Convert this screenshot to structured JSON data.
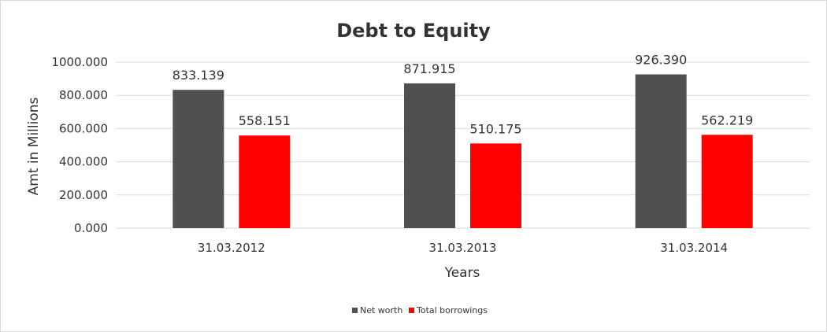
{
  "chart_data": {
    "type": "bar",
    "title": "Debt to Equity",
    "xlabel": "Years",
    "ylabel": "Amt in Millions",
    "categories": [
      "31.03.2012",
      "31.03.2013",
      "31.03.2014"
    ],
    "ylim": [
      0,
      1000
    ],
    "yticks": [
      "0.000",
      "200.000",
      "400.000",
      "600.000",
      "800.000",
      "1000.000"
    ],
    "grid": true,
    "legend_position": "bottom",
    "series": [
      {
        "name": "Net worth",
        "color": "#505050",
        "values": [
          833.139,
          871.915,
          926.39
        ],
        "labels": [
          "833.139",
          "871.915",
          "926.390"
        ]
      },
      {
        "name": "Total borrowings",
        "color": "#ff0000",
        "values": [
          558.151,
          510.175,
          562.219
        ],
        "labels": [
          "558.151",
          "510.175",
          "562.219"
        ]
      }
    ]
  }
}
